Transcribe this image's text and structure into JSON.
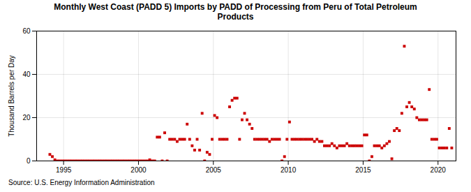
{
  "chart_data": {
    "type": "scatter",
    "title": "Monthly West Coast (PADD 5) Imports by PADD of Processing from Peru of Total Petroleum\nProducts",
    "ylabel": "Thousand Barrels per Day",
    "source": "Source: U.S. Energy Information Administration",
    "color": "#cc0000",
    "marker": "square",
    "grid": true,
    "xlim": [
      1993.2,
      2021.2
    ],
    "ylim": [
      0,
      60
    ],
    "xticks": [
      1995,
      2000,
      2005,
      2010,
      2015,
      2020
    ],
    "yticks": [
      0,
      20,
      40,
      60
    ],
    "x": [
      1994.0833,
      1994.25,
      1994.4167,
      1994.5833,
      1994.75,
      1994.9167,
      1995.0833,
      1995.25,
      1995.4167,
      1995.5833,
      1995.75,
      1995.9167,
      1996.0833,
      1996.25,
      1996.4167,
      1996.5833,
      1996.75,
      1996.9167,
      1997.0833,
      1997.25,
      1997.4167,
      1997.5833,
      1997.75,
      1997.9167,
      1998.0833,
      1998.25,
      1998.4167,
      1998.5833,
      1998.75,
      1998.9167,
      1999.0833,
      1999.25,
      1999.4167,
      1999.5833,
      1999.75,
      1999.9167,
      2000.0833,
      2000.25,
      2000.4167,
      2000.5833,
      2000.75,
      2000.9167,
      2001.0833,
      2001.25,
      2001.4167,
      2001.5833,
      2001.75,
      2001.9167,
      2002.0833,
      2002.25,
      2002.4167,
      2002.5833,
      2002.75,
      2002.9167,
      2003.0833,
      2003.25,
      2003.4167,
      2003.5833,
      2003.75,
      2003.9167,
      2004.0833,
      2004.25,
      2004.4167,
      2004.5833,
      2004.75,
      2004.9167,
      2005.0833,
      2005.25,
      2005.4167,
      2005.5833,
      2005.75,
      2005.9167,
      2006.0833,
      2006.25,
      2006.4167,
      2006.5833,
      2006.75,
      2006.9167,
      2007.0833,
      2007.25,
      2007.4167,
      2007.5833,
      2007.75,
      2007.9167,
      2008.0833,
      2008.25,
      2008.4167,
      2008.5833,
      2008.75,
      2008.9167,
      2009.0833,
      2009.25,
      2009.4167,
      2009.5833,
      2009.75,
      2009.9167,
      2010.0833,
      2010.25,
      2010.4167,
      2010.5833,
      2010.75,
      2010.9167,
      2011.0833,
      2011.25,
      2011.4167,
      2011.5833,
      2011.75,
      2011.9167,
      2012.0833,
      2012.25,
      2012.4167,
      2012.5833,
      2012.75,
      2012.9167,
      2013.0833,
      2013.25,
      2013.4167,
      2013.5833,
      2013.75,
      2013.9167,
      2014.0833,
      2014.25,
      2014.4167,
      2014.5833,
      2014.75,
      2014.9167,
      2015.0833,
      2015.25,
      2015.4167,
      2015.5833,
      2015.75,
      2015.9167,
      2016.0833,
      2016.25,
      2016.4167,
      2016.5833,
      2016.75,
      2016.9167,
      2017.0833,
      2017.25,
      2017.4167,
      2017.5833,
      2017.75,
      2017.9167,
      2018.0833,
      2018.25,
      2018.4167,
      2018.5833,
      2018.75,
      2018.9167,
      2019.0833,
      2019.25,
      2019.4167,
      2019.5833,
      2019.75,
      2019.9167,
      2020.0833,
      2020.25,
      2020.4167,
      2020.5833,
      2020.75,
      2020.9167
    ],
    "values": [
      3.0,
      2.0,
      0.5,
      0.0,
      0.0,
      0.0,
      0.0,
      0.0,
      0.0,
      0.0,
      0.0,
      0.0,
      0.0,
      0.0,
      0.0,
      0.0,
      0.0,
      0.0,
      0.0,
      0.0,
      0.0,
      0.0,
      0.0,
      0.0,
      0.0,
      0.0,
      0.0,
      0.0,
      0.0,
      0.0,
      0.0,
      0.0,
      0.0,
      0.0,
      0.0,
      0.0,
      0.0,
      0.0,
      0.0,
      0.0,
      0.5,
      0.0,
      0.0,
      11.0,
      11.0,
      0.0,
      13.0,
      0.0,
      10.0,
      10.0,
      10.0,
      9.0,
      10.0,
      10.0,
      10.0,
      17.0,
      10.0,
      7.0,
      5.0,
      10.0,
      5.0,
      22.0,
      0.0,
      4.0,
      3.0,
      10.0,
      21.0,
      20.0,
      10.0,
      10.0,
      10.0,
      10.0,
      25.0,
      28.0,
      29.0,
      29.0,
      10.0,
      19.0,
      22.0,
      19.0,
      17.0,
      15.0,
      10.0,
      10.0,
      10.0,
      10.0,
      10.0,
      10.0,
      9.0,
      10.0,
      10.0,
      10.0,
      10.0,
      0.0,
      2.0,
      10.0,
      18.0,
      10.0,
      10.0,
      10.0,
      10.0,
      10.0,
      10.0,
      10.0,
      10.0,
      10.0,
      9.0,
      10.0,
      9.0,
      9.0,
      7.0,
      7.0,
      7.0,
      8.0,
      7.0,
      6.0,
      7.0,
      7.0,
      7.0,
      8.0,
      7.0,
      7.0,
      7.0,
      7.0,
      7.0,
      7.0,
      12.0,
      12.0,
      0.0,
      2.0,
      7.0,
      7.0,
      7.0,
      6.0,
      7.0,
      8.0,
      9.0,
      1.0,
      14.0,
      15.0,
      14.0,
      22.0,
      53.0,
      25.0,
      27.0,
      25.0,
      24.0,
      20.0,
      19.0,
      19.0,
      19.0,
      19.0,
      33.0,
      10.0,
      10.0,
      10.0,
      6.0,
      6.0,
      6.0,
      6.0,
      15.0,
      6.0
    ]
  }
}
